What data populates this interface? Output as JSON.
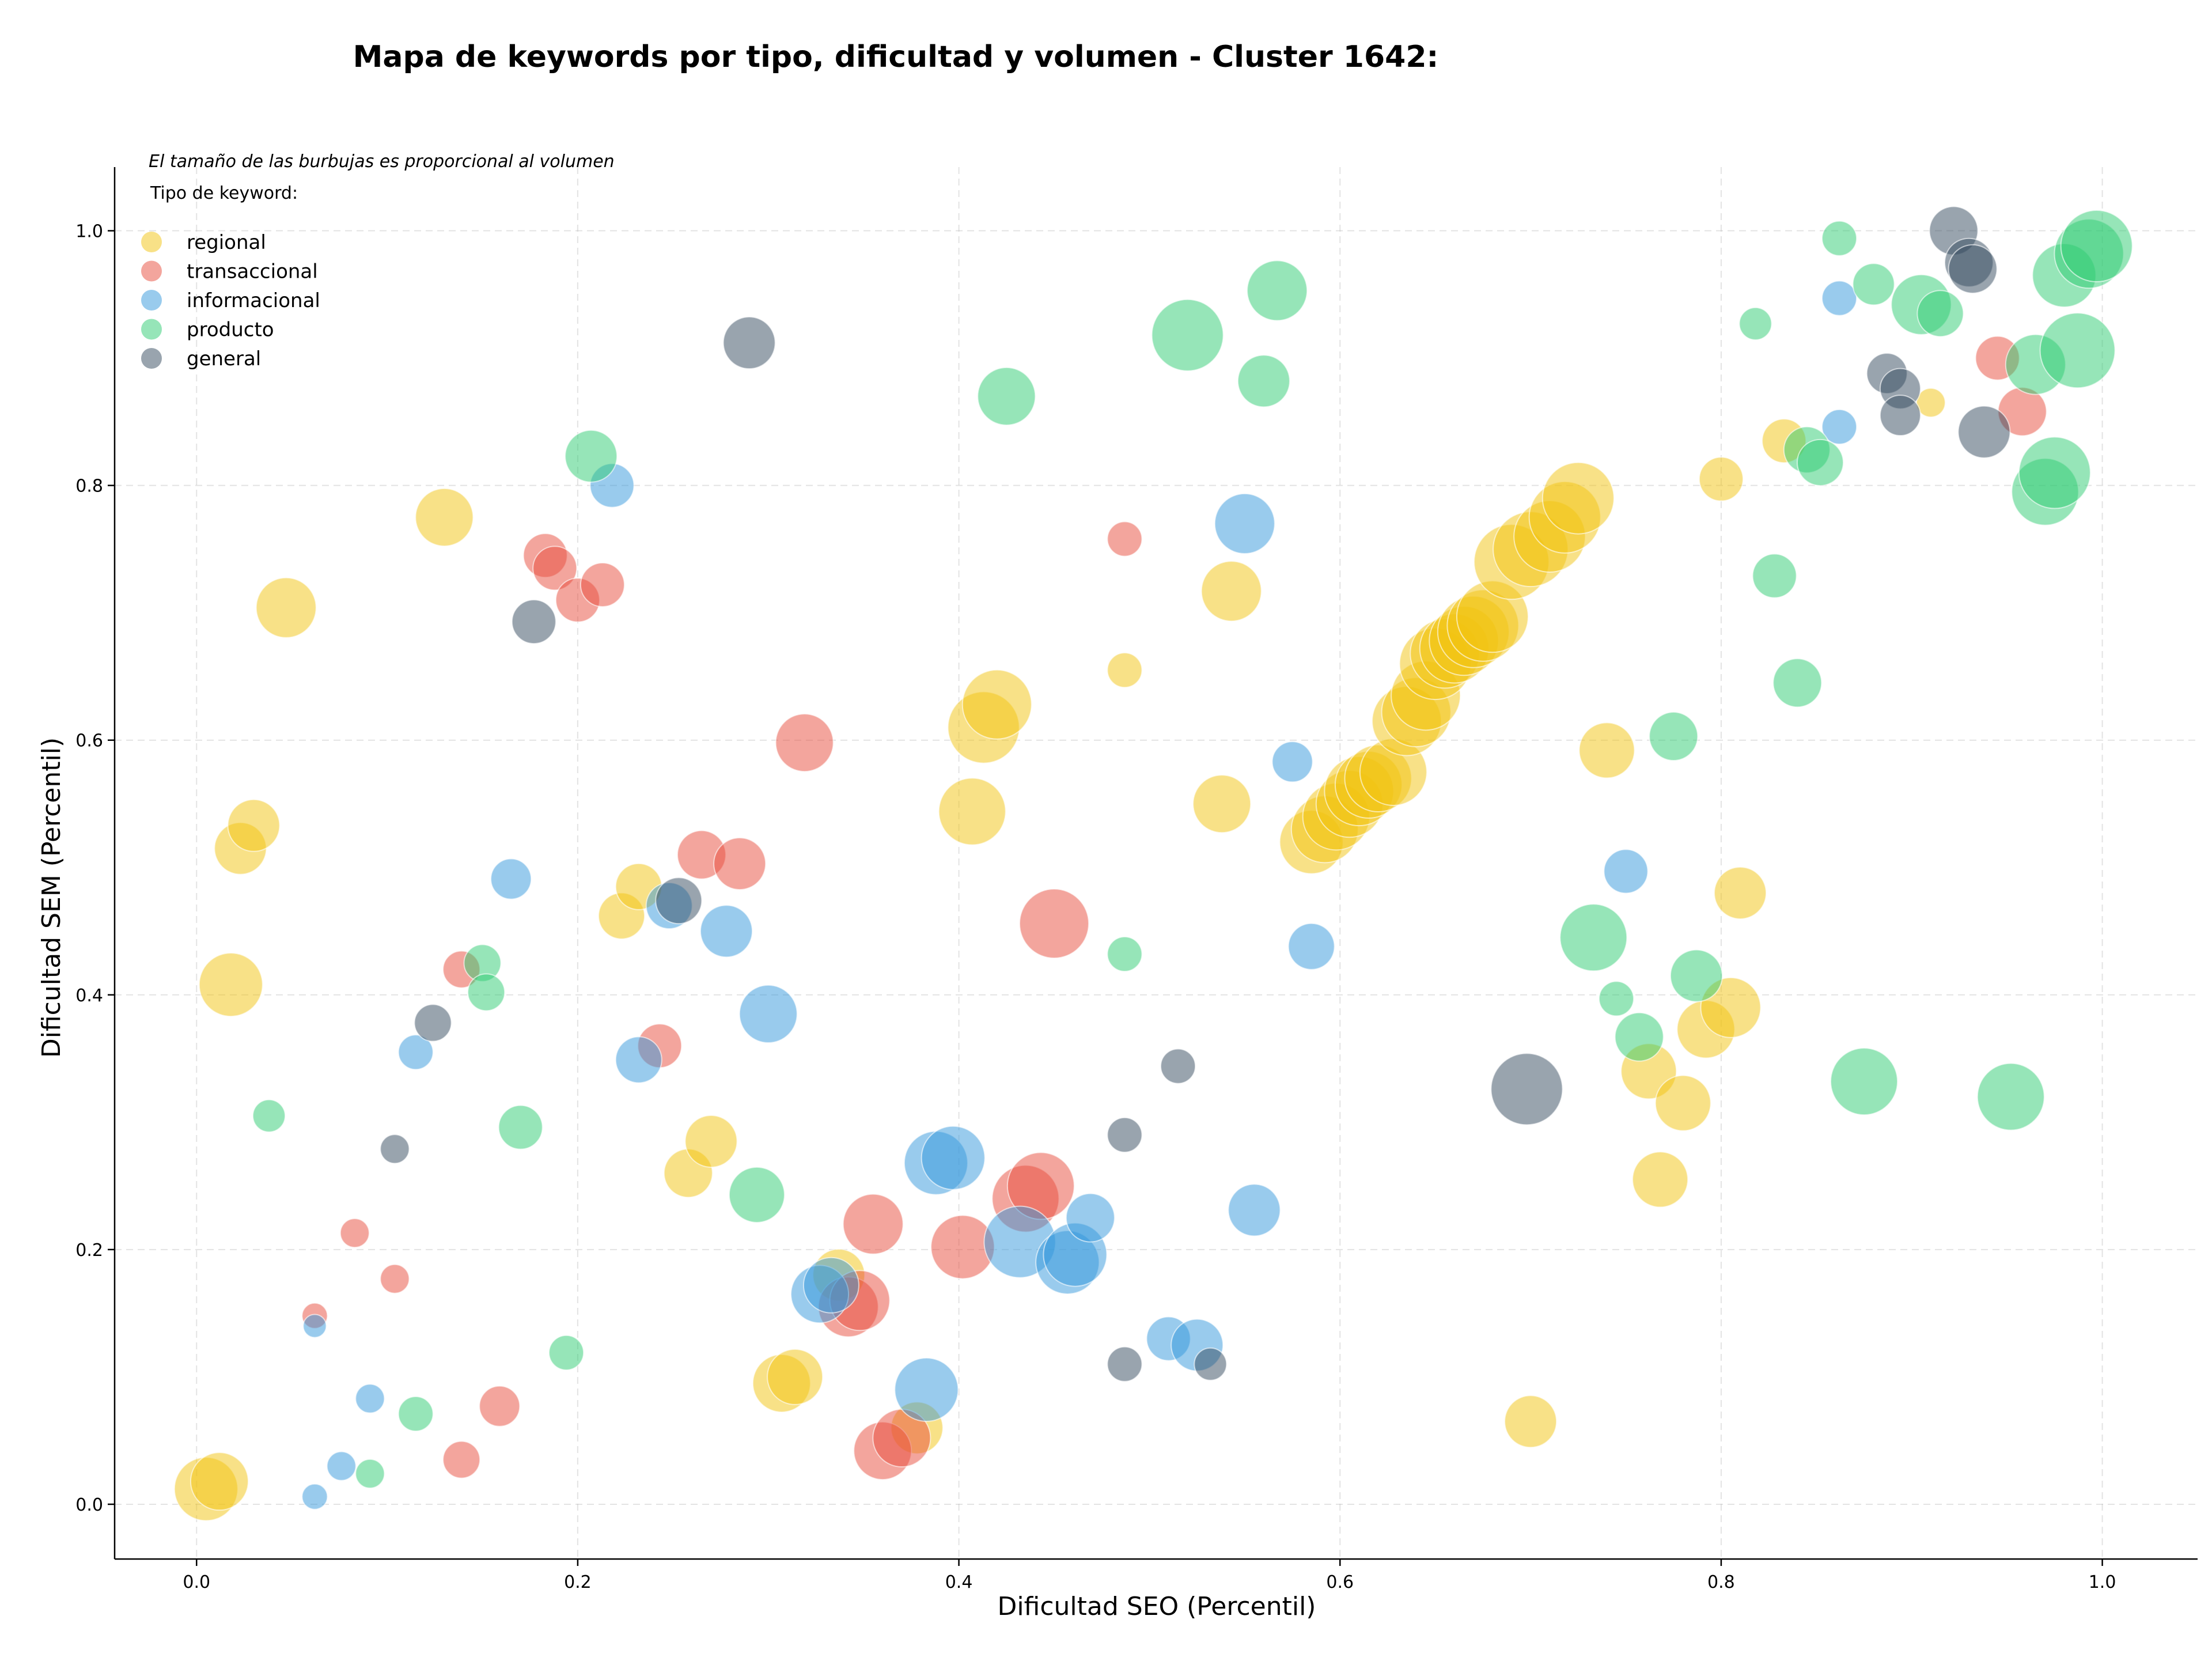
{
  "title": "Mapa de keywords por tipo, dificultad y volumen - Cluster 1642:",
  "chart_data": {
    "type": "scatter",
    "title": "Mapa de keywords por tipo, dificultad y volumen - Cluster 1642:",
    "xlabel": "Dificultad SEO (Percentil)",
    "ylabel": "Dificultad SEM (Percentil)",
    "xlim": [
      -0.043,
      1.05
    ],
    "ylim": [
      -0.043,
      1.05
    ],
    "xticks": [
      "0.0",
      "0.2",
      "0.4",
      "0.6",
      "0.8",
      "1.0"
    ],
    "yticks": [
      "0.0",
      "0.2",
      "0.4",
      "0.6",
      "0.8",
      "1.0"
    ],
    "grid": true,
    "note": "El tamaño de las burbujas es proporcional al volumen",
    "legend_title": "Tipo de keyword:",
    "legend_placement": "top-left",
    "series": [
      {
        "name": "regional",
        "color": "#f1c40f",
        "points": [
          [
            0.005,
            0.012,
            55
          ],
          [
            0.012,
            0.018,
            50
          ],
          [
            0.018,
            0.408,
            55
          ],
          [
            0.023,
            0.515,
            45
          ],
          [
            0.03,
            0.533,
            45
          ],
          [
            0.047,
            0.704,
            52
          ],
          [
            0.13,
            0.775,
            50
          ],
          [
            0.223,
            0.462,
            40
          ],
          [
            0.232,
            0.485,
            40
          ],
          [
            0.258,
            0.26,
            42
          ],
          [
            0.27,
            0.285,
            45
          ],
          [
            0.307,
            0.095,
            50
          ],
          [
            0.314,
            0.1,
            48
          ],
          [
            0.337,
            0.18,
            45
          ],
          [
            0.378,
            0.06,
            45
          ],
          [
            0.407,
            0.544,
            58
          ],
          [
            0.413,
            0.61,
            62
          ],
          [
            0.42,
            0.628,
            60
          ],
          [
            0.487,
            0.655,
            30
          ],
          [
            0.538,
            0.55,
            50
          ],
          [
            0.543,
            0.717,
            52
          ],
          [
            0.585,
            0.52,
            55
          ],
          [
            0.592,
            0.53,
            58
          ],
          [
            0.598,
            0.54,
            58
          ],
          [
            0.605,
            0.55,
            58
          ],
          [
            0.61,
            0.56,
            60
          ],
          [
            0.615,
            0.565,
            58
          ],
          [
            0.62,
            0.57,
            58
          ],
          [
            0.628,
            0.575,
            58
          ],
          [
            0.635,
            0.615,
            60
          ],
          [
            0.64,
            0.622,
            60
          ],
          [
            0.645,
            0.635,
            60
          ],
          [
            0.65,
            0.66,
            62
          ],
          [
            0.655,
            0.668,
            60
          ],
          [
            0.66,
            0.672,
            60
          ],
          [
            0.665,
            0.678,
            60
          ],
          [
            0.67,
            0.685,
            62
          ],
          [
            0.675,
            0.69,
            62
          ],
          [
            0.68,
            0.697,
            62
          ],
          [
            0.69,
            0.74,
            65
          ],
          [
            0.7,
            0.75,
            65
          ],
          [
            0.71,
            0.76,
            62
          ],
          [
            0.718,
            0.775,
            62
          ],
          [
            0.725,
            0.79,
            62
          ],
          [
            0.7,
            0.065,
            45
          ],
          [
            0.74,
            0.592,
            48
          ],
          [
            0.762,
            0.34,
            48
          ],
          [
            0.768,
            0.255,
            48
          ],
          [
            0.78,
            0.315,
            48
          ],
          [
            0.792,
            0.373,
            50
          ],
          [
            0.8,
            0.805,
            38
          ],
          [
            0.805,
            0.39,
            52
          ],
          [
            0.81,
            0.48,
            45
          ],
          [
            0.833,
            0.835,
            38
          ],
          [
            0.91,
            0.865,
            25
          ]
        ]
      },
      {
        "name": "transaccional",
        "color": "#e74c3c",
        "points": [
          [
            0.062,
            0.148,
            22
          ],
          [
            0.083,
            0.213,
            25
          ],
          [
            0.104,
            0.177,
            25
          ],
          [
            0.139,
            0.035,
            32
          ],
          [
            0.139,
            0.42,
            32
          ],
          [
            0.159,
            0.077,
            35
          ],
          [
            0.183,
            0.745,
            38
          ],
          [
            0.188,
            0.735,
            38
          ],
          [
            0.2,
            0.71,
            38
          ],
          [
            0.213,
            0.722,
            38
          ],
          [
            0.243,
            0.36,
            38
          ],
          [
            0.265,
            0.51,
            42
          ],
          [
            0.285,
            0.503,
            45
          ],
          [
            0.319,
            0.598,
            50
          ],
          [
            0.342,
            0.155,
            52
          ],
          [
            0.348,
            0.16,
            52
          ],
          [
            0.355,
            0.22,
            52
          ],
          [
            0.36,
            0.042,
            50
          ],
          [
            0.37,
            0.052,
            50
          ],
          [
            0.402,
            0.202,
            55
          ],
          [
            0.435,
            0.24,
            58
          ],
          [
            0.443,
            0.25,
            58
          ],
          [
            0.45,
            0.456,
            60
          ],
          [
            0.487,
            0.758,
            30
          ],
          [
            0.945,
            0.9,
            38
          ],
          [
            0.958,
            0.858,
            42
          ]
        ]
      },
      {
        "name": "informacional",
        "color": "#3498db",
        "points": [
          [
            0.062,
            0.006,
            22
          ],
          [
            0.062,
            0.14,
            20
          ],
          [
            0.076,
            0.03,
            25
          ],
          [
            0.091,
            0.083,
            25
          ],
          [
            0.115,
            0.355,
            30
          ],
          [
            0.165,
            0.491,
            35
          ],
          [
            0.218,
            0.8,
            38
          ],
          [
            0.232,
            0.349,
            40
          ],
          [
            0.248,
            0.47,
            40
          ],
          [
            0.278,
            0.45,
            45
          ],
          [
            0.3,
            0.385,
            50
          ],
          [
            0.327,
            0.165,
            50
          ],
          [
            0.333,
            0.172,
            48
          ],
          [
            0.383,
            0.09,
            55
          ],
          [
            0.388,
            0.268,
            55
          ],
          [
            0.397,
            0.272,
            55
          ],
          [
            0.432,
            0.206,
            62
          ],
          [
            0.457,
            0.19,
            55
          ],
          [
            0.461,
            0.196,
            55
          ],
          [
            0.469,
            0.225,
            42
          ],
          [
            0.51,
            0.13,
            38
          ],
          [
            0.525,
            0.125,
            45
          ],
          [
            0.55,
            0.77,
            52
          ],
          [
            0.555,
            0.231,
            45
          ],
          [
            0.575,
            0.583,
            35
          ],
          [
            0.585,
            0.438,
            40
          ],
          [
            0.75,
            0.497,
            38
          ],
          [
            0.862,
            0.947,
            30
          ],
          [
            0.862,
            0.846,
            30
          ]
        ]
      },
      {
        "name": "producto",
        "color": "#2ecc71",
        "points": [
          [
            0.038,
            0.305,
            28
          ],
          [
            0.091,
            0.024,
            25
          ],
          [
            0.115,
            0.071,
            30
          ],
          [
            0.15,
            0.425,
            32
          ],
          [
            0.152,
            0.402,
            32
          ],
          [
            0.17,
            0.296,
            38
          ],
          [
            0.194,
            0.119,
            30
          ],
          [
            0.207,
            0.823,
            45
          ],
          [
            0.294,
            0.243,
            48
          ],
          [
            0.425,
            0.87,
            50
          ],
          [
            0.487,
            0.432,
            30
          ],
          [
            0.52,
            0.918,
            62
          ],
          [
            0.56,
            0.882,
            45
          ],
          [
            0.567,
            0.953,
            52
          ],
          [
            0.733,
            0.445,
            58
          ],
          [
            0.745,
            0.397,
            30
          ],
          [
            0.757,
            0.367,
            42
          ],
          [
            0.775,
            0.603,
            42
          ],
          [
            0.787,
            0.415,
            45
          ],
          [
            0.818,
            0.927,
            28
          ],
          [
            0.828,
            0.729,
            38
          ],
          [
            0.84,
            0.645,
            42
          ],
          [
            0.845,
            0.828,
            40
          ],
          [
            0.852,
            0.818,
            40
          ],
          [
            0.862,
            0.994,
            30
          ],
          [
            0.875,
            0.332,
            58
          ],
          [
            0.88,
            0.958,
            36
          ],
          [
            0.905,
            0.942,
            52
          ],
          [
            0.915,
            0.935,
            40
          ],
          [
            0.952,
            0.32,
            58
          ],
          [
            0.965,
            0.895,
            52
          ],
          [
            0.97,
            0.795,
            58
          ],
          [
            0.975,
            0.81,
            62
          ],
          [
            0.98,
            0.965,
            55
          ],
          [
            0.987,
            0.906,
            65
          ],
          [
            0.993,
            0.982,
            60
          ],
          [
            0.997,
            0.988,
            62
          ]
        ]
      },
      {
        "name": "general",
        "color": "#34495e",
        "points": [
          [
            0.104,
            0.279,
            25
          ],
          [
            0.124,
            0.378,
            32
          ],
          [
            0.177,
            0.693,
            38
          ],
          [
            0.253,
            0.474,
            40
          ],
          [
            0.29,
            0.912,
            45
          ],
          [
            0.487,
            0.29,
            30
          ],
          [
            0.487,
            0.11,
            30
          ],
          [
            0.515,
            0.344,
            30
          ],
          [
            0.532,
            0.11,
            28
          ],
          [
            0.698,
            0.326,
            62
          ],
          [
            0.887,
            0.888,
            35
          ],
          [
            0.894,
            0.876,
            35
          ],
          [
            0.894,
            0.855,
            35
          ],
          [
            0.922,
            1.0,
            42
          ],
          [
            0.93,
            0.975,
            42
          ],
          [
            0.932,
            0.97,
            42
          ],
          [
            0.938,
            0.842,
            45
          ]
        ]
      }
    ]
  }
}
